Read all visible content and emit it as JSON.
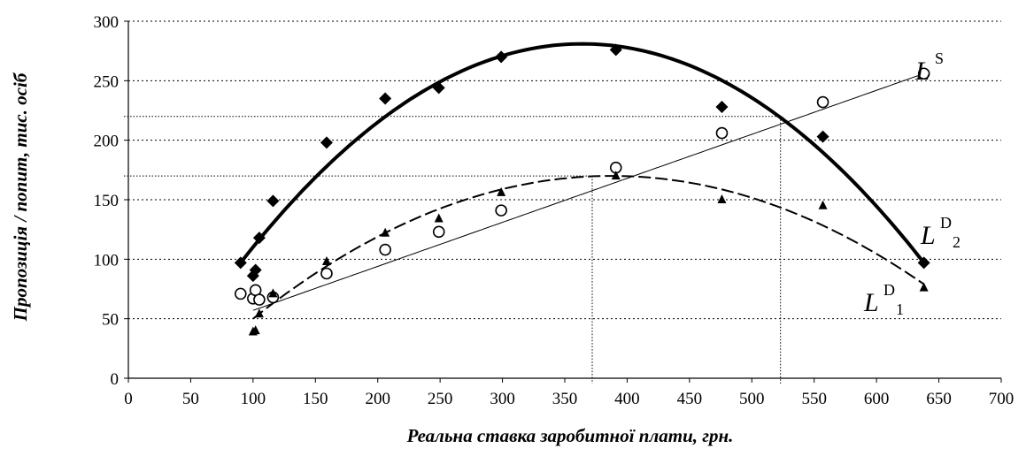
{
  "chart_data": {
    "type": "scatter",
    "xlabel": "Реальна ставка заробитної плати, грн.",
    "ylabel": "Пропозиція / попит, тис. осіб",
    "xlim": [
      0,
      700
    ],
    "ylim": [
      0,
      300
    ],
    "x_ticks": [
      "0",
      "50",
      "100",
      "150",
      "200",
      "250",
      "300",
      "350",
      "400",
      "450",
      "500",
      "550",
      "600",
      "650",
      "700"
    ],
    "y_ticks": [
      "0",
      "50",
      "100",
      "150",
      "200",
      "250",
      "300"
    ],
    "grid": "horizontal dotted",
    "series": [
      {
        "name": "L^D2",
        "marker": "diamond",
        "points": [
          [
            90,
            97
          ],
          [
            100,
            86
          ],
          [
            102,
            91
          ],
          [
            105,
            118
          ],
          [
            116,
            149
          ],
          [
            159,
            198
          ],
          [
            206,
            235
          ],
          [
            249,
            244
          ],
          [
            299,
            270
          ],
          [
            391,
            276
          ],
          [
            476,
            228
          ],
          [
            557,
            203
          ],
          [
            638,
            97
          ]
        ],
        "trend": {
          "kind": "quadratic",
          "x_from": 90,
          "x_to": 638,
          "points": [
            [
              90,
              97
            ],
            [
              363,
              281
            ],
            [
              638,
              97
            ]
          ],
          "style": "solid-thick"
        }
      },
      {
        "name": "L^S",
        "marker": "circle",
        "points": [
          [
            90,
            71
          ],
          [
            100,
            67
          ],
          [
            102,
            74
          ],
          [
            105,
            66
          ],
          [
            116,
            68
          ],
          [
            159,
            88
          ],
          [
            206,
            108
          ],
          [
            249,
            123
          ],
          [
            299,
            141
          ],
          [
            391,
            177
          ],
          [
            476,
            206
          ],
          [
            557,
            232
          ],
          [
            638,
            256
          ]
        ],
        "trend": {
          "kind": "linear",
          "x_from": 100,
          "x_to": 638,
          "points": [
            [
              100,
              57
            ],
            [
              638,
              256
            ]
          ],
          "style": "solid-thin"
        }
      },
      {
        "name": "L^D1",
        "marker": "triangle",
        "points": [
          [
            100,
            39
          ],
          [
            102,
            40
          ],
          [
            105,
            54
          ],
          [
            116,
            71
          ],
          [
            159,
            98
          ],
          [
            206,
            122
          ],
          [
            249,
            134
          ],
          [
            299,
            156
          ],
          [
            391,
            170
          ],
          [
            476,
            150
          ],
          [
            557,
            145
          ],
          [
            638,
            76
          ]
        ],
        "trend": {
          "kind": "quadratic",
          "x_from": 100,
          "x_to": 638,
          "points": [
            [
              100,
              50
            ],
            [
              390,
              170
            ],
            [
              638,
              79
            ]
          ],
          "style": "dashed"
        }
      }
    ],
    "reference_lines": [
      {
        "x": 372,
        "y": 170
      },
      {
        "x": 523,
        "y": 220
      }
    ],
    "curve_labels": [
      {
        "series": "L^S",
        "main": "L",
        "sup": "S",
        "sub": ""
      },
      {
        "series": "L^D2",
        "main": "L",
        "sup": "D",
        "sub": "2"
      },
      {
        "series": "L^D1",
        "main": "L",
        "sup": "D",
        "sub": "1"
      }
    ]
  }
}
